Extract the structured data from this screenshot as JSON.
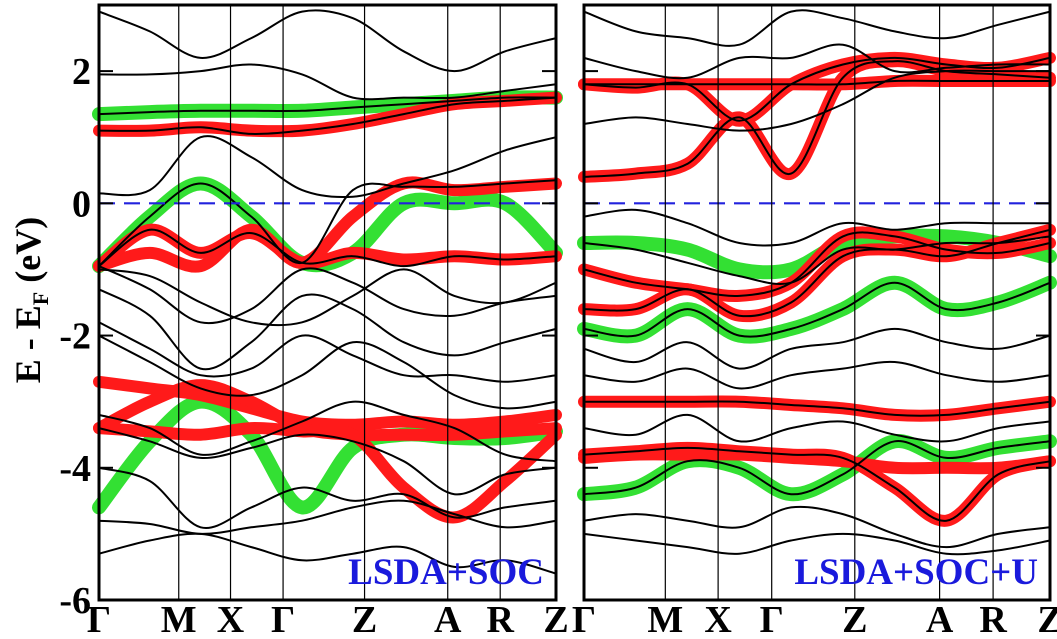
{
  "chart_data": {
    "type": "line",
    "ylabel": "E - E",
    "ylabel_subscript": "F",
    "ylabel_suffix": " (eV)",
    "ylim": [
      -6,
      3
    ],
    "yticks": [
      {
        "value": 2,
        "label": "2"
      },
      {
        "value": 0,
        "label": "0"
      },
      {
        "value": -2,
        "label": "-2"
      },
      {
        "value": -4,
        "label": "-4"
      },
      {
        "value": -6,
        "label": "-6"
      }
    ],
    "kpoints": [
      "Γ",
      "M",
      "X",
      "Γ",
      "Z",
      "A",
      "R",
      "Z"
    ],
    "fermi_level": 0,
    "colors": {
      "bands": "#000000",
      "weight_red": "#ff1a1a",
      "weight_green": "#33e033",
      "fermi": "#2222dd",
      "title": "#1a1adc"
    },
    "panels": [
      {
        "title": "LSDA+SOC",
        "red_bands": [
          [
            -0.95,
            -0.75,
            -0.95,
            -0.4,
            -0.9,
            -0.2,
            0.3,
            0.2,
            0.25,
            0.3
          ],
          [
            -0.95,
            -0.4,
            -0.75,
            -0.45,
            -0.9,
            -0.75,
            -0.85,
            -0.8,
            -0.85,
            -0.8
          ],
          [
            1.1,
            1.1,
            1.15,
            1.1,
            1.1,
            1.2,
            1.35,
            1.5,
            1.55,
            1.6
          ],
          [
            -2.7,
            -2.8,
            -2.9,
            -3.1,
            -3.3,
            -3.35,
            -3.3,
            -3.35,
            -3.3,
            -3.2
          ],
          [
            -3.4,
            -3.0,
            -2.75,
            -3.0,
            -3.4,
            -3.5,
            -3.5,
            -3.5,
            -3.45,
            -3.4
          ],
          [
            -3.4,
            -3.45,
            -3.5,
            -3.4,
            -3.45,
            -3.5,
            -4.3,
            -4.75,
            -4.2,
            -3.5
          ]
        ],
        "green_bands": [
          [
            -0.95,
            -0.2,
            0.3,
            -0.2,
            -0.9,
            -0.75,
            0.0,
            0.0,
            0.0,
            -0.75
          ],
          [
            1.35,
            1.38,
            1.4,
            1.4,
            1.4,
            1.45,
            1.5,
            1.55,
            1.6,
            1.6
          ],
          [
            -4.6,
            -3.6,
            -3.0,
            -3.5,
            -4.6,
            -3.7,
            -3.5,
            -3.55,
            -3.55,
            -3.45
          ]
        ],
        "black_bands": [
          [
            -0.95,
            -0.2,
            0.3,
            -0.2,
            -0.9,
            0.2,
            0.25,
            0.25,
            0.3,
            0.35
          ],
          [
            -0.95,
            -0.4,
            -0.75,
            -0.45,
            -0.9,
            -0.8,
            -0.95,
            -0.8,
            -0.85,
            -0.8
          ],
          [
            1.1,
            1.1,
            1.15,
            1.05,
            1.1,
            1.2,
            1.35,
            1.5,
            1.55,
            1.6
          ],
          [
            1.35,
            1.38,
            1.4,
            1.4,
            1.4,
            1.45,
            1.5,
            1.55,
            1.6,
            1.6
          ],
          [
            1.95,
            1.95,
            2.0,
            2.1,
            1.95,
            1.6,
            1.6,
            1.6,
            1.7,
            1.8
          ],
          [
            0.15,
            0.2,
            1.0,
            0.7,
            0.2,
            0.1,
            0.3,
            0.5,
            0.8,
            1.0
          ],
          [
            2.9,
            2.6,
            2.2,
            2.5,
            2.9,
            2.8,
            2.3,
            2.0,
            2.3,
            2.5
          ],
          [
            -1.0,
            -1.1,
            -1.5,
            -1.8,
            -1.8,
            -1.4,
            -1.0,
            -1.4,
            -1.5,
            -1.2
          ],
          [
            -1.3,
            -1.7,
            -2.5,
            -2.1,
            -1.4,
            -1.6,
            -2.1,
            -2.3,
            -2.1,
            -1.9
          ],
          [
            -1.8,
            -2.2,
            -2.6,
            -2.5,
            -2.0,
            -2.3,
            -2.6,
            -2.6,
            -2.7,
            -2.6
          ],
          [
            -2.0,
            -2.4,
            -2.8,
            -2.9,
            -2.6,
            -2.1,
            -2.4,
            -2.9,
            -3.1,
            -3.0
          ],
          [
            -3.2,
            -3.4,
            -3.8,
            -3.6,
            -3.3,
            -3.0,
            -3.2,
            -3.4,
            -3.8,
            -3.9
          ],
          [
            -3.4,
            -3.6,
            -3.85,
            -3.7,
            -3.5,
            -3.6,
            -3.9,
            -4.4,
            -4.1,
            -4.0
          ],
          [
            -4.0,
            -4.2,
            -4.9,
            -4.6,
            -4.3,
            -4.5,
            -4.4,
            -4.75,
            -4.6,
            -4.5
          ],
          [
            -4.8,
            -4.85,
            -5.0,
            -4.9,
            -4.8,
            -4.6,
            -4.5,
            -4.7,
            -4.9,
            -4.8
          ],
          [
            -5.3,
            -5.1,
            -5.0,
            -5.2,
            -5.4,
            -5.3,
            -5.2,
            -5.5,
            -5.4,
            -5.6
          ],
          [
            -0.95,
            -1.3,
            -1.8,
            -1.6,
            -1.0,
            -1.2,
            -1.6,
            -1.7,
            -1.5,
            -1.4
          ]
        ]
      },
      {
        "title": "LSDA+SOC+U",
        "red_bands": [
          [
            0.4,
            0.45,
            0.6,
            1.3,
            0.45,
            1.9,
            2.15,
            2.0,
            1.95,
            1.9
          ],
          [
            1.8,
            1.75,
            1.8,
            1.25,
            1.8,
            2.1,
            2.2,
            2.1,
            2.05,
            2.2
          ],
          [
            1.8,
            1.8,
            1.8,
            1.8,
            1.8,
            1.8,
            1.85,
            1.85,
            1.85,
            1.85
          ],
          [
            -1.6,
            -1.6,
            -1.3,
            -1.7,
            -1.5,
            -0.8,
            -0.7,
            -0.8,
            -0.6,
            -0.4
          ],
          [
            -1.0,
            -1.2,
            -1.3,
            -1.4,
            -1.2,
            -0.5,
            -0.5,
            -0.7,
            -0.75,
            -0.6
          ],
          [
            -3.0,
            -3.0,
            -3.0,
            -3.0,
            -3.05,
            -3.1,
            -3.2,
            -3.2,
            -3.1,
            -3.0
          ],
          [
            -3.8,
            -3.75,
            -3.7,
            -3.75,
            -3.8,
            -3.85,
            -4.3,
            -4.8,
            -4.1,
            -3.9
          ],
          [
            -3.85,
            -3.8,
            -3.8,
            -3.8,
            -3.85,
            -3.9,
            -4.0,
            -4.0,
            -4.0,
            -3.9
          ]
        ],
        "green_bands": [
          [
            -1.9,
            -2.0,
            -1.6,
            -2.0,
            -1.9,
            -1.6,
            -1.2,
            -1.6,
            -1.5,
            -1.2
          ],
          [
            -0.6,
            -0.6,
            -0.7,
            -1.0,
            -1.0,
            -0.6,
            -0.5,
            -0.5,
            -0.6,
            -0.8
          ],
          [
            -4.4,
            -4.3,
            -3.9,
            -4.0,
            -4.4,
            -4.1,
            -3.6,
            -3.85,
            -3.7,
            -3.6
          ]
        ],
        "black_bands": [
          [
            0.4,
            0.45,
            0.6,
            1.3,
            0.45,
            1.9,
            2.15,
            2.0,
            1.95,
            1.9
          ],
          [
            1.8,
            1.75,
            1.8,
            1.25,
            1.8,
            2.1,
            2.2,
            2.1,
            2.05,
            2.2
          ],
          [
            1.8,
            1.8,
            1.8,
            1.8,
            1.8,
            1.8,
            1.85,
            1.85,
            1.85,
            1.85
          ],
          [
            1.2,
            1.3,
            1.2,
            1.1,
            1.2,
            1.5,
            1.9,
            2.0,
            2.0,
            2.0
          ],
          [
            2.2,
            2.0,
            1.9,
            2.2,
            2.2,
            2.4,
            2.0,
            2.05,
            2.1,
            2.1
          ],
          [
            2.9,
            2.6,
            2.5,
            2.4,
            2.9,
            2.8,
            2.6,
            2.5,
            2.7,
            2.9
          ],
          [
            -0.2,
            -0.1,
            -0.3,
            -0.6,
            -0.6,
            -0.3,
            -0.4,
            -0.3,
            -0.3,
            -0.3
          ],
          [
            -0.6,
            -0.7,
            -0.9,
            -1.1,
            -1.2,
            -0.7,
            -0.7,
            -0.6,
            -0.6,
            -0.5
          ],
          [
            -1.0,
            -1.2,
            -1.3,
            -1.4,
            -1.2,
            -0.5,
            -0.5,
            -0.7,
            -0.75,
            -0.6
          ],
          [
            -1.6,
            -1.6,
            -1.3,
            -1.7,
            -1.5,
            -0.8,
            -0.7,
            -0.8,
            -0.6,
            -0.4
          ],
          [
            -1.9,
            -2.0,
            -1.6,
            -2.0,
            -1.9,
            -1.6,
            -1.2,
            -1.6,
            -1.5,
            -1.2
          ],
          [
            -2.2,
            -2.4,
            -2.1,
            -2.5,
            -2.2,
            -2.1,
            -1.9,
            -2.1,
            -2.2,
            -2.0
          ],
          [
            -2.6,
            -2.7,
            -2.5,
            -2.8,
            -2.6,
            -2.5,
            -2.4,
            -2.6,
            -2.7,
            -2.6
          ],
          [
            -3.0,
            -3.0,
            -3.0,
            -3.0,
            -3.05,
            -3.1,
            -3.2,
            -3.2,
            -3.1,
            -3.0
          ],
          [
            -3.4,
            -3.5,
            -3.2,
            -3.6,
            -3.4,
            -3.3,
            -3.5,
            -3.6,
            -3.4,
            -3.3
          ],
          [
            -3.8,
            -3.75,
            -3.7,
            -3.75,
            -3.8,
            -3.85,
            -4.3,
            -4.8,
            -4.1,
            -3.9
          ],
          [
            -4.4,
            -4.3,
            -3.9,
            -4.0,
            -4.4,
            -4.1,
            -3.6,
            -3.85,
            -3.7,
            -3.6
          ],
          [
            -4.8,
            -4.7,
            -4.8,
            -4.9,
            -4.6,
            -4.7,
            -5.0,
            -5.2,
            -5.0,
            -4.9
          ],
          [
            -5.0,
            -5.1,
            -5.2,
            -5.3,
            -5.1,
            -5.0,
            -5.1,
            -5.3,
            -5.25,
            -5.1
          ]
        ]
      }
    ]
  }
}
